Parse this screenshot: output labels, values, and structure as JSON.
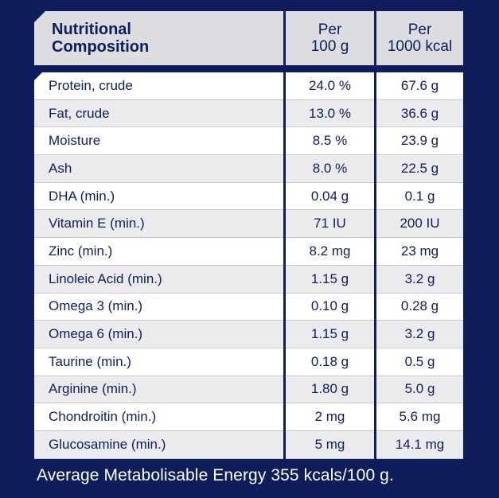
{
  "header": {
    "col1_line1": "Nutritional",
    "col1_line2": "Composition",
    "col2_line1": "Per",
    "col2_line2": "100 g",
    "col3_line1": "Per",
    "col3_line2": "1000 kcal"
  },
  "rows": [
    {
      "name": "Protein, crude",
      "per100g": "24.0 %",
      "per1000kcal": "67.6 g"
    },
    {
      "name": "Fat, crude",
      "per100g": "13.0 %",
      "per1000kcal": "36.6 g"
    },
    {
      "name": "Moisture",
      "per100g": "8.5 %",
      "per1000kcal": "23.9 g"
    },
    {
      "name": "Ash",
      "per100g": "8.0 %",
      "per1000kcal": "22.5 g"
    },
    {
      "name": "DHA (min.)",
      "per100g": "0.04 g",
      "per1000kcal": "0.1 g"
    },
    {
      "name": "Vitamin E (min.)",
      "per100g": "71 IU",
      "per1000kcal": "200 IU"
    },
    {
      "name": "Zinc (min.)",
      "per100g": "8.2 mg",
      "per1000kcal": "23 mg"
    },
    {
      "name": "Linoleic Acid (min.)",
      "per100g": "1.15 g",
      "per1000kcal": "3.2 g"
    },
    {
      "name": "Omega 3 (min.)",
      "per100g": "0.10 g",
      "per1000kcal": "0.28 g"
    },
    {
      "name": "Omega 6 (min.)",
      "per100g": "1.15 g",
      "per1000kcal": "3.2 g"
    },
    {
      "name": "Taurine (min.)",
      "per100g": "0.18 g",
      "per1000kcal": "0.5 g"
    },
    {
      "name": "Arginine (min.)",
      "per100g": "1.80 g",
      "per1000kcal": "5.0 g"
    },
    {
      "name": "Chondroitin (min.)",
      "per100g": "2 mg",
      "per1000kcal": "5.6 mg"
    },
    {
      "name": "Glucosamine (min.)",
      "per100g": "5 mg",
      "per1000kcal": "14.1 mg"
    }
  ],
  "footer": "Average Metabolisable Energy 355 kcals/100 g."
}
